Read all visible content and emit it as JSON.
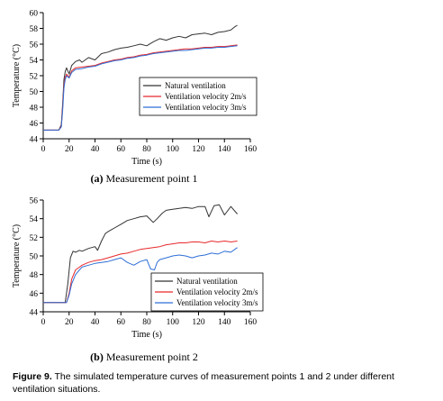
{
  "figure": {
    "label": "Figure 9.",
    "caption": "The simulated temperature curves of measurement points 1 and 2 under different ventilation situations."
  },
  "chart_data": [
    {
      "type": "line",
      "caption_letter": "(a)",
      "caption_text": "Measurement point 1",
      "xlabel": "Time (s)",
      "ylabel": "Temperature (°C)",
      "xlim": [
        0,
        160
      ],
      "ylim": [
        44,
        60
      ],
      "xticks": [
        "0",
        "20",
        "40",
        "60",
        "80",
        "100",
        "120",
        "140",
        "160"
      ],
      "yticks": [
        "44",
        "46",
        "48",
        "50",
        "52",
        "54",
        "56",
        "58",
        "60"
      ],
      "legend_position": "middle-right",
      "grid": false,
      "series": [
        {
          "name": "Natural ventilation",
          "color": "#333333",
          "x": [
            0,
            12,
            14,
            15,
            16,
            17,
            18,
            20,
            22,
            25,
            28,
            30,
            35,
            40,
            45,
            50,
            55,
            60,
            65,
            70,
            75,
            80,
            85,
            90,
            95,
            100,
            105,
            110,
            115,
            120,
            125,
            130,
            135,
            140,
            145,
            148,
            150
          ],
          "y": [
            45.1,
            45.1,
            45.8,
            48.5,
            51.5,
            52.5,
            53.0,
            52.2,
            53.3,
            53.8,
            54.0,
            53.7,
            54.3,
            54.0,
            54.8,
            55.0,
            55.3,
            55.5,
            55.6,
            55.8,
            56.0,
            55.8,
            56.3,
            56.7,
            56.5,
            56.8,
            57.0,
            56.8,
            57.2,
            57.3,
            57.4,
            57.2,
            57.5,
            57.6,
            57.8,
            58.2,
            58.4
          ]
        },
        {
          "name": "Ventilation velocity 2m/s",
          "color": "#e8292b",
          "x": [
            0,
            12,
            14,
            15,
            16,
            17,
            18,
            20,
            22,
            25,
            30,
            35,
            40,
            45,
            50,
            55,
            60,
            65,
            70,
            75,
            80,
            85,
            90,
            95,
            100,
            105,
            110,
            115,
            120,
            125,
            130,
            135,
            140,
            145,
            150
          ],
          "y": [
            45.1,
            45.1,
            45.6,
            48.0,
            50.8,
            51.8,
            52.2,
            51.8,
            52.6,
            53.0,
            53.1,
            53.2,
            53.3,
            53.6,
            53.8,
            54.0,
            54.1,
            54.3,
            54.4,
            54.6,
            54.7,
            54.9,
            55.0,
            55.1,
            55.2,
            55.3,
            55.4,
            55.4,
            55.5,
            55.6,
            55.6,
            55.7,
            55.7,
            55.8,
            55.9
          ]
        },
        {
          "name": "Ventilation velocity 3m/s",
          "color": "#2f6fd6",
          "x": [
            0,
            12,
            14,
            15,
            16,
            17,
            18,
            20,
            22,
            25,
            30,
            35,
            40,
            45,
            50,
            55,
            60,
            65,
            70,
            75,
            80,
            85,
            90,
            95,
            100,
            105,
            110,
            115,
            120,
            125,
            130,
            135,
            140,
            145,
            150
          ],
          "y": [
            45.1,
            45.1,
            45.5,
            47.6,
            50.4,
            51.5,
            52.0,
            51.7,
            52.4,
            52.8,
            52.9,
            53.1,
            53.2,
            53.5,
            53.7,
            53.9,
            54.0,
            54.2,
            54.3,
            54.5,
            54.6,
            54.8,
            54.9,
            55.0,
            55.1,
            55.2,
            55.2,
            55.3,
            55.4,
            55.5,
            55.5,
            55.6,
            55.6,
            55.7,
            55.8
          ]
        }
      ]
    },
    {
      "type": "line",
      "caption_letter": "(b)",
      "caption_text": "Measurement point 2",
      "xlabel": "Time (s)",
      "ylabel": "Temperature (°C)",
      "xlim": [
        0,
        160
      ],
      "ylim": [
        44,
        56
      ],
      "xticks": [
        "0",
        "20",
        "40",
        "60",
        "80",
        "100",
        "120",
        "140",
        "160"
      ],
      "yticks": [
        "44",
        "46",
        "48",
        "50",
        "52",
        "54",
        "56"
      ],
      "legend_position": "bottom-right",
      "grid": false,
      "series": [
        {
          "name": "Natural ventilation",
          "color": "#333333",
          "x": [
            0,
            17,
            19,
            21,
            23,
            25,
            28,
            30,
            35,
            40,
            42,
            45,
            48,
            50,
            55,
            60,
            65,
            70,
            75,
            80,
            85,
            88,
            92,
            95,
            100,
            105,
            110,
            115,
            120,
            125,
            128,
            132,
            136,
            140,
            145,
            150
          ],
          "y": [
            45.0,
            45.0,
            47.0,
            49.8,
            50.5,
            50.4,
            50.6,
            50.5,
            50.8,
            51.0,
            50.6,
            51.6,
            52.4,
            52.6,
            53.0,
            53.4,
            53.8,
            54.0,
            54.2,
            54.3,
            53.6,
            54.0,
            54.6,
            54.9,
            55.0,
            55.1,
            55.2,
            55.1,
            55.3,
            55.3,
            54.2,
            55.4,
            55.5,
            54.4,
            55.3,
            54.5
          ]
        },
        {
          "name": "Ventilation velocity 2m/s",
          "color": "#e8292b",
          "x": [
            0,
            18,
            20,
            22,
            25,
            28,
            30,
            35,
            40,
            45,
            50,
            55,
            60,
            65,
            70,
            75,
            80,
            85,
            90,
            95,
            100,
            105,
            110,
            115,
            120,
            125,
            130,
            135,
            140,
            145,
            150
          ],
          "y": [
            45.0,
            45.0,
            46.0,
            47.5,
            48.5,
            48.8,
            49.0,
            49.3,
            49.5,
            49.6,
            49.8,
            50.0,
            50.2,
            50.3,
            50.5,
            50.7,
            50.8,
            50.9,
            51.0,
            51.2,
            51.3,
            51.4,
            51.4,
            51.5,
            51.5,
            51.4,
            51.6,
            51.5,
            51.6,
            51.5,
            51.6
          ]
        },
        {
          "name": "Ventilation velocity 3m/s",
          "color": "#2f6fd6",
          "x": [
            0,
            18,
            20,
            22,
            25,
            28,
            30,
            35,
            40,
            45,
            50,
            55,
            60,
            65,
            70,
            75,
            80,
            83,
            86,
            88,
            90,
            95,
            100,
            105,
            110,
            115,
            120,
            125,
            130,
            135,
            140,
            145,
            150
          ],
          "y": [
            45.0,
            45.0,
            45.8,
            47.0,
            48.0,
            48.5,
            48.8,
            49.0,
            49.2,
            49.3,
            49.4,
            49.6,
            49.8,
            49.3,
            49.0,
            49.4,
            49.6,
            48.6,
            48.5,
            49.3,
            49.6,
            49.8,
            50.0,
            50.1,
            50.0,
            49.8,
            50.0,
            50.1,
            50.3,
            50.2,
            50.5,
            50.4,
            50.9
          ]
        }
      ]
    }
  ]
}
